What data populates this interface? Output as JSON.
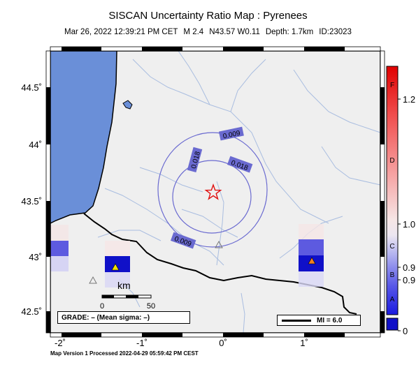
{
  "title": "SISCAN Uncertainty Ratio Map : Pyrenees",
  "subtitle": {
    "datetime": "Mar 26, 2022 12:39:21 PM CET",
    "magnitude": "M 2.4",
    "location": "N43.57 W0.11",
    "depth": "Depth: 1.7km",
    "id": "ID:23023"
  },
  "axes": {
    "lat_labels": [
      "44.5˚",
      "44˚",
      "43.5˚",
      "43˚",
      "42.5˚"
    ],
    "lon_labels": [
      "-2˚",
      "-1˚",
      "0˚",
      "1˚"
    ]
  },
  "contours": {
    "labels": [
      "0.009",
      "0.018",
      "0.018",
      "0.009"
    ]
  },
  "scalebar": {
    "unit": "km",
    "ticks": [
      "0",
      "50"
    ]
  },
  "grade_text": "GRADE: – (Mean sigma: –)",
  "mi_text": "MI = 6.0",
  "colorbar": {
    "values": [
      "1.2",
      "1.0",
      "0.9",
      "0.9",
      "0"
    ],
    "grades": [
      "F",
      "D",
      "C",
      "B",
      "A"
    ]
  },
  "footer": "Map Version 1 Processed 2022-04-29 05:59:42 PM CEST",
  "colors": {
    "sea": "#6a8fd8",
    "land": "#efefef",
    "river": "#a9bde0",
    "contour": "#6a6ad0",
    "epicenter": "#e01010",
    "cell_dark": "#1010c8",
    "cell_mid": "#5d5ae0"
  }
}
